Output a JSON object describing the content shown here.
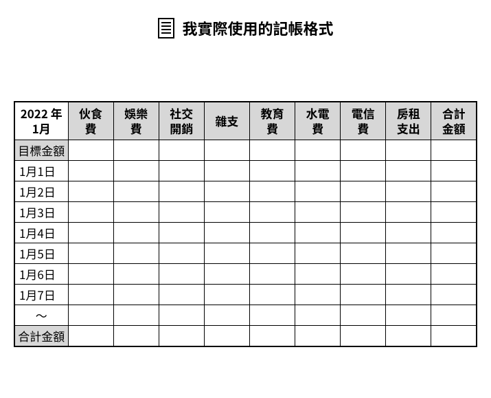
{
  "title": "我實際使用的記帳格式",
  "table": {
    "date_header_line1": "2022 年",
    "date_header_line2": "1月",
    "columns": [
      {
        "line1": "伙食",
        "line2": "費"
      },
      {
        "line1": "娛樂",
        "line2": "費"
      },
      {
        "line1": "社交",
        "line2": "開銷"
      },
      {
        "line1": "雜支",
        "line2": ""
      },
      {
        "line1": "教育",
        "line2": "費"
      },
      {
        "line1": "水電",
        "line2": "費"
      },
      {
        "line1": "電信",
        "line2": "費"
      },
      {
        "line1": "房租",
        "line2": "支出"
      },
      {
        "line1": "合計",
        "line2": "金額"
      }
    ],
    "target_row_label": "目標金額",
    "date_rows": [
      "1月1日",
      "1月2日",
      "1月3日",
      "1月4日",
      "1月5日",
      "1月6日",
      "1月7日",
      "～"
    ],
    "total_row_label": "合計金額"
  },
  "colors": {
    "header_bg": "#d7d7d7",
    "border": "#000000",
    "background": "#ffffff",
    "text": "#000000"
  }
}
